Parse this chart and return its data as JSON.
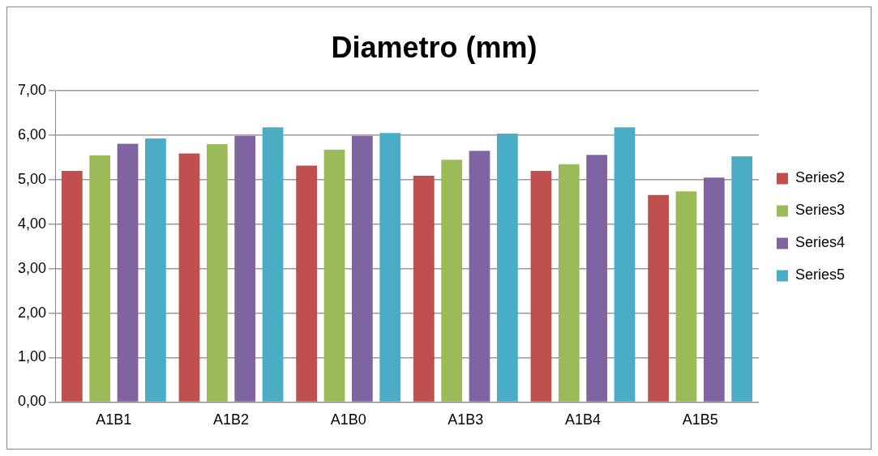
{
  "chart_data": {
    "type": "bar",
    "title": "Diametro (mm)",
    "categories": [
      "A1B1",
      "A1B2",
      "A1B0",
      "A1B3",
      "A1B4",
      "A1B5"
    ],
    "series": [
      {
        "name": "Series2",
        "color": "#c0504d",
        "values": [
          5.2,
          5.59,
          5.32,
          5.09,
          5.2,
          4.66
        ]
      },
      {
        "name": "Series3",
        "color": "#9bbb59",
        "values": [
          5.55,
          5.8,
          5.68,
          5.45,
          5.35,
          4.74
        ]
      },
      {
        "name": "Series4",
        "color": "#8064a2",
        "values": [
          5.81,
          5.99,
          5.99,
          5.65,
          5.56,
          5.05
        ]
      },
      {
        "name": "Series5",
        "color": "#4bacc6",
        "values": [
          5.93,
          6.18,
          6.05,
          6.04,
          6.18,
          5.53
        ]
      }
    ],
    "ylim": [
      0,
      7
    ],
    "yticks": [
      {
        "value": 0,
        "label": "0,00"
      },
      {
        "value": 1,
        "label": "1,00"
      },
      {
        "value": 2,
        "label": "2,00"
      },
      {
        "value": 3,
        "label": "3,00"
      },
      {
        "value": 4,
        "label": "4,00"
      },
      {
        "value": 5,
        "label": "5,00"
      },
      {
        "value": 6,
        "label": "6,00"
      },
      {
        "value": 7,
        "label": "7,00"
      }
    ],
    "grid": "y",
    "legend": "right"
  }
}
